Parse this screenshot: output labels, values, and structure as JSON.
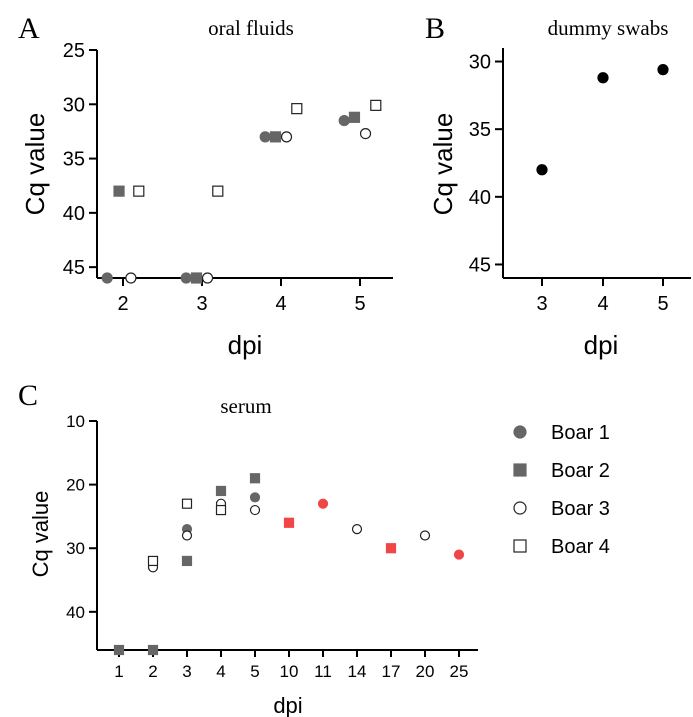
{
  "chart_data": [
    {
      "panel": "A",
      "type": "scatter",
      "title": "oral fluids",
      "xlabel": "dpi",
      "ylabel": "Cq value",
      "x_ticks": [
        "2",
        "3",
        "4",
        "5"
      ],
      "y_ticks": [
        25,
        30,
        35,
        40,
        45
      ],
      "ylim": [
        25,
        46
      ],
      "y_inverted": true,
      "series": [
        {
          "name": "Boar 1",
          "marker": "circle",
          "fill": "#666666",
          "x": [
            1.8,
            2.8,
            3.8,
            4.8
          ],
          "y": [
            46,
            46,
            33,
            31.5
          ]
        },
        {
          "name": "Boar 2",
          "marker": "square",
          "fill": "#666666",
          "x": [
            1.95,
            2.93,
            3.93,
            4.93
          ],
          "y": [
            38,
            46,
            33,
            31.2
          ]
        },
        {
          "name": "Boar 3",
          "marker": "circle",
          "fill": "#ffffff",
          "x": [
            2.1,
            3.07,
            4.07,
            5.07
          ],
          "y": [
            46,
            46,
            33,
            32.7
          ]
        },
        {
          "name": "Boar 4",
          "marker": "square",
          "fill": "#ffffff",
          "x": [
            2.2,
            3.2,
            4.2,
            5.2
          ],
          "y": [
            38,
            38,
            30.4,
            30.1
          ]
        }
      ]
    },
    {
      "panel": "B",
      "type": "scatter",
      "title": "dummy swabs",
      "xlabel": "dpi",
      "ylabel": "Cq value",
      "x_ticks": [
        "3",
        "4",
        "5"
      ],
      "y_ticks": [
        30,
        35,
        40,
        45
      ],
      "ylim": [
        29,
        46
      ],
      "y_inverted": true,
      "series": [
        {
          "marker": "circle",
          "fill": "#000000",
          "x": [
            "3",
            "4",
            "5"
          ],
          "y": [
            38,
            31.2,
            30.6
          ]
        }
      ]
    },
    {
      "panel": "C",
      "type": "scatter",
      "title": "serum",
      "xlabel": "dpi",
      "ylabel": "Cq value",
      "categories": [
        "1",
        "2",
        "3",
        "4",
        "5",
        "10",
        "11",
        "14",
        "17",
        "20",
        "25"
      ],
      "y_ticks": [
        10,
        20,
        30,
        40
      ],
      "ylim": [
        10,
        46
      ],
      "y_inverted": true,
      "legend_position": "right",
      "series": [
        {
          "name": "Boar 1",
          "marker": "circle",
          "fill": "#666666",
          "points": [
            [
              "1",
              46
            ],
            [
              "2",
              33
            ],
            [
              "3",
              27
            ],
            [
              "4",
              21
            ],
            [
              "5",
              22
            ],
            [
              "11",
              23,
              "#f04646"
            ],
            [
              "25",
              31,
              "#f04646"
            ]
          ]
        },
        {
          "name": "Boar 2",
          "marker": "square",
          "fill": "#666666",
          "points": [
            [
              "1",
              46
            ],
            [
              "2",
              46
            ],
            [
              "3",
              32
            ],
            [
              "4",
              21
            ],
            [
              "5",
              19
            ],
            [
              "10",
              26,
              "#f04646"
            ],
            [
              "17",
              30,
              "#f04646"
            ]
          ]
        },
        {
          "name": "Boar 3",
          "marker": "circle",
          "fill": "#ffffff",
          "points": [
            [
              "2",
              33
            ],
            [
              "3",
              28
            ],
            [
              "4",
              23
            ],
            [
              "5",
              24
            ],
            [
              "14",
              27
            ],
            [
              "20",
              28
            ]
          ]
        },
        {
          "name": "Boar 4",
          "marker": "square",
          "fill": "#ffffff",
          "points": [
            [
              "2",
              32
            ],
            [
              "3",
              23
            ],
            [
              "4",
              24
            ]
          ]
        }
      ]
    }
  ],
  "legend": [
    {
      "label": "Boar 1",
      "marker": "circle",
      "fill": "#666666"
    },
    {
      "label": "Boar 2",
      "marker": "square",
      "fill": "#666666"
    },
    {
      "label": "Boar 3",
      "marker": "circle",
      "fill": "#ffffff"
    },
    {
      "label": "Boar 4",
      "marker": "square",
      "fill": "#ffffff"
    }
  ]
}
